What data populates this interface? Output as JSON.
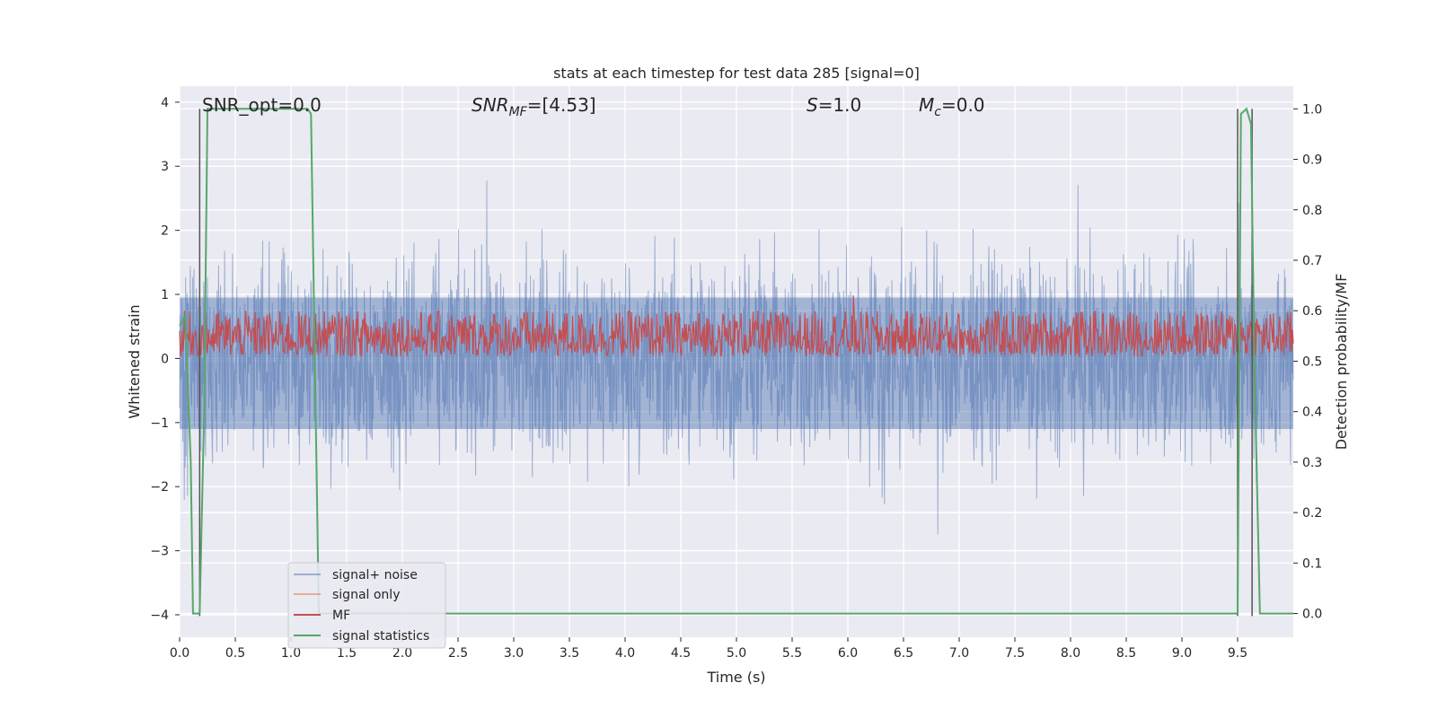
{
  "chart_data": {
    "type": "line",
    "title": "stats at each timestep for test data 285 [signal=0]",
    "xlabel": "Time (s)",
    "ylabel_left": "Whitened strain",
    "ylabel_right": "Detection probability/MF",
    "xlim": [
      0.0,
      10.0
    ],
    "ylim_left": [
      -4.35,
      4.25
    ],
    "ylim_right": [
      -0.047,
      1.045
    ],
    "x_ticks": [
      "0.0",
      "0.5",
      "1.0",
      "1.5",
      "2.0",
      "2.5",
      "3.0",
      "3.5",
      "4.0",
      "4.5",
      "5.0",
      "5.5",
      "6.0",
      "6.5",
      "7.0",
      "7.5",
      "8.0",
      "8.5",
      "9.0",
      "9.5"
    ],
    "y_ticks_left": [
      "4",
      "3",
      "2",
      "1",
      "0",
      "−1",
      "−2",
      "−3",
      "−4"
    ],
    "y_ticks_right": [
      "1.0",
      "0.9",
      "0.8",
      "0.7",
      "0.6",
      "0.5",
      "0.4",
      "0.3",
      "0.2",
      "0.1",
      "0.0"
    ],
    "grid": true,
    "legend_position": "lower-left",
    "annotations": {
      "snr_opt": "SNR_opt=0.0",
      "snr_mf_base": "SNR",
      "snr_mf_sub": "MF",
      "snr_mf_value": "=[4.53]",
      "s_symbol": "S",
      "s_value": "=1.0",
      "mc_symbol": "M",
      "mc_sub": "c",
      "mc_value": "=0.0"
    },
    "series": [
      {
        "name": "signal+ noise",
        "color": "#4c72b0",
        "axis": "left",
        "style": "noise band, amplitude roughly -3.5..3.8, mean ~0"
      },
      {
        "name": "signal only",
        "color": "#dd8452",
        "axis": "left",
        "values": []
      },
      {
        "name": "MF",
        "color": "#c44e52",
        "axis": "right",
        "range": [
          0.51,
          0.6
        ],
        "peak": {
          "x": 6.05,
          "y": 0.63
        }
      },
      {
        "name": "signal statistics",
        "color": "#55a868",
        "axis": "right",
        "x": [
          0.0,
          0.05,
          0.1,
          0.12,
          0.18,
          0.22,
          0.25,
          0.3,
          0.5,
          1.0,
          1.15,
          1.18,
          1.2,
          1.25,
          1.3,
          2.0,
          5.0,
          9.0,
          9.5,
          9.53,
          9.58,
          9.62,
          9.65,
          9.7,
          9.9,
          10.0
        ],
        "y": [
          0.57,
          0.59,
          0.3,
          0.0,
          0.0,
          0.4,
          1.0,
          1.0,
          1.0,
          1.0,
          1.0,
          0.99,
          0.7,
          0.0,
          0.0,
          0.0,
          0.0,
          0.0,
          0.0,
          0.99,
          1.0,
          0.97,
          0.5,
          0.0,
          0.0,
          0.0
        ]
      },
      {
        "name": "vlines",
        "color": "#555555",
        "x": [
          0.18,
          9.5,
          9.63
        ]
      }
    ]
  }
}
